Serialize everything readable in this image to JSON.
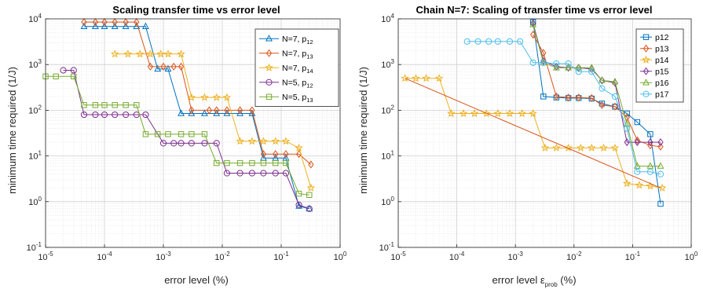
{
  "chart_data": [
    {
      "type": "line",
      "title": "Scaling transfer time vs error level",
      "xlabel": "error level (%)",
      "ylabel": "minimum time required (1/J)",
      "xscale": "log",
      "yscale": "log",
      "xlim": [
        1e-05,
        1
      ],
      "ylim": [
        0.1,
        10000
      ],
      "x_ticks": [
        {
          "b": "10",
          "e": "-5"
        },
        {
          "b": "10",
          "e": "-4"
        },
        {
          "b": "10",
          "e": "-3"
        },
        {
          "b": "10",
          "e": "-2"
        },
        {
          "b": "10",
          "e": "-1"
        },
        {
          "b": "10",
          "e": "0"
        }
      ],
      "y_ticks": [
        {
          "b": "10",
          "e": "-1"
        },
        {
          "b": "10",
          "e": "0"
        },
        {
          "b": "10",
          "e": "1"
        },
        {
          "b": "10",
          "e": "2"
        },
        {
          "b": "10",
          "e": "3"
        },
        {
          "b": "10",
          "e": "4"
        }
      ],
      "grid": true,
      "legend_position": "top-right",
      "series": [
        {
          "name": "N=7, p",
          "sub": "12",
          "color": "#0072BD",
          "marker": "triangle",
          "x": [
            4.5e-05,
            7e-05,
            0.0001,
            0.00015,
            0.00023,
            0.00035,
            0.0005,
            0.0008,
            0.0012,
            0.002,
            0.003,
            0.005,
            0.008,
            0.012,
            0.02,
            0.032,
            0.05,
            0.08,
            0.12,
            0.2,
            0.3
          ],
          "y": [
            6800,
            6800,
            6800,
            6800,
            6800,
            6800,
            6800,
            800,
            800,
            85,
            85,
            85,
            85,
            85,
            85,
            85,
            9,
            9,
            9,
            0.8,
            0.7
          ]
        },
        {
          "name": "N=7, p",
          "sub": "13",
          "color": "#D95319",
          "marker": "diamond",
          "x": [
            4.5e-05,
            7e-05,
            0.0001,
            0.00015,
            0.00023,
            0.00035,
            0.0006,
            0.001,
            0.0015,
            0.002,
            0.003,
            0.006,
            0.008,
            0.012,
            0.02,
            0.032,
            0.05,
            0.08,
            0.12,
            0.2,
            0.32
          ],
          "y": [
            8500,
            8500,
            8500,
            8500,
            8500,
            8500,
            900,
            900,
            900,
            900,
            100,
            100,
            100,
            100,
            100,
            100,
            11,
            11,
            11,
            11,
            6.5
          ]
        },
        {
          "name": "N=7, p",
          "sub": "14",
          "color": "#EDB120",
          "marker": "star",
          "x": [
            0.00015,
            0.00025,
            0.0004,
            0.0006,
            0.0009,
            0.0012,
            0.002,
            0.003,
            0.005,
            0.008,
            0.012,
            0.02,
            0.032,
            0.05,
            0.08,
            0.12,
            0.2,
            0.32
          ],
          "y": [
            1700,
            1700,
            1700,
            1700,
            1700,
            1700,
            1700,
            190,
            190,
            190,
            190,
            21,
            21,
            21,
            21,
            21,
            15,
            2
          ]
        },
        {
          "name": "N=5, p",
          "sub": "12",
          "color": "#7E2F8E",
          "marker": "circle",
          "x": [
            2e-05,
            3e-05,
            4.5e-05,
            7e-05,
            0.0001,
            0.00015,
            0.00023,
            0.00035,
            0.0005,
            0.001,
            0.0015,
            0.002,
            0.003,
            0.005,
            0.008,
            0.012,
            0.02,
            0.032,
            0.05,
            0.08,
            0.12,
            0.2,
            0.3
          ],
          "y": [
            750,
            750,
            80,
            80,
            80,
            80,
            80,
            80,
            80,
            19,
            19,
            19,
            19,
            19,
            19,
            4.2,
            4.2,
            4.2,
            4.2,
            4.2,
            4.2,
            0.85,
            0.7
          ]
        },
        {
          "name": "N=5, p",
          "sub": "13",
          "color": "#77AC30",
          "marker": "square",
          "x": [
            1e-05,
            1.5e-05,
            3e-05,
            4.5e-05,
            7e-05,
            0.0001,
            0.00015,
            0.00023,
            0.00035,
            0.0005,
            0.0008,
            0.0012,
            0.002,
            0.003,
            0.005,
            0.008,
            0.012,
            0.02,
            0.032,
            0.05,
            0.08,
            0.12,
            0.2,
            0.3
          ],
          "y": [
            550,
            550,
            550,
            130,
            130,
            130,
            130,
            130,
            130,
            30,
            30,
            30,
            30,
            30,
            30,
            7,
            7,
            7,
            7,
            7,
            7,
            7,
            1.5,
            1.4
          ]
        }
      ]
    },
    {
      "type": "line",
      "title": "Chain N=7: Scaling of transfer time vs error level",
      "xlabel": "error level ε",
      "xlabel_sub": "prob",
      "xlabel_suffix": " (%)",
      "ylabel": "minimum time required (1/J)",
      "xscale": "log",
      "yscale": "log",
      "xlim": [
        1e-05,
        1
      ],
      "ylim": [
        0.1,
        10000
      ],
      "x_ticks": [
        {
          "b": "10",
          "e": "-5"
        },
        {
          "b": "10",
          "e": "-4"
        },
        {
          "b": "10",
          "e": "-3"
        },
        {
          "b": "10",
          "e": "-2"
        },
        {
          "b": "10",
          "e": "-1"
        },
        {
          "b": "10",
          "e": "0"
        }
      ],
      "y_ticks": [
        {
          "b": "10",
          "e": "-1"
        },
        {
          "b": "10",
          "e": "0"
        },
        {
          "b": "10",
          "e": "1"
        },
        {
          "b": "10",
          "e": "2"
        },
        {
          "b": "10",
          "e": "3"
        },
        {
          "b": "10",
          "e": "4"
        }
      ],
      "grid": true,
      "legend_position": "top-right",
      "series": [
        {
          "name": "p12",
          "color": "#0072BD",
          "marker": "square",
          "x": [
            0.002,
            0.003,
            0.005,
            0.008,
            0.012,
            0.02,
            0.03,
            0.05,
            0.08,
            0.12,
            0.2,
            0.3
          ],
          "y": [
            8500,
            200,
            190,
            185,
            185,
            180,
            140,
            120,
            85,
            55,
            30,
            0.9
          ]
        },
        {
          "name": "p13",
          "color": "#D95319",
          "marker": "diamond",
          "x": [
            0.002,
            0.003,
            0.005,
            0.008,
            0.012,
            0.02,
            0.03,
            0.05,
            0.08,
            0.12,
            0.2,
            0.3
          ],
          "y": [
            4500,
            1800,
            200,
            190,
            190,
            185,
            130,
            120,
            70,
            22,
            17,
            16
          ]
        },
        {
          "name": "p14",
          "color": "#EDB120",
          "marker": "star",
          "x": [
            1.3e-05,
            2e-05,
            3e-05,
            5e-05,
            8e-05,
            0.00013,
            0.0002,
            0.00032,
            0.0005,
            0.0008,
            0.0013,
            0.002,
            0.0032,
            0.005,
            0.008,
            0.013,
            0.02,
            0.032,
            0.05,
            0.08,
            0.13,
            0.2,
            0.32
          ],
          "y": [
            500,
            500,
            500,
            500,
            85,
            85,
            85,
            85,
            85,
            85,
            85,
            85,
            15,
            15,
            15,
            15,
            15,
            15,
            15,
            2.5,
            2.3,
            2.2,
            2
          ]
        },
        {
          "name": "p15",
          "color": "#7E2F8E",
          "marker": "diamond",
          "x": [
            0.002,
            0.003,
            0.005,
            0.008,
            0.012,
            0.02,
            0.03,
            0.05,
            0.08,
            0.12,
            0.2,
            0.3
          ],
          "y": [
            8000,
            1200,
            900,
            850,
            850,
            800,
            450,
            400,
            20,
            20,
            20,
            20
          ]
        },
        {
          "name": "p16",
          "color": "#77AC30",
          "marker": "triangle",
          "x": [
            0.002,
            0.003,
            0.005,
            0.008,
            0.012,
            0.02,
            0.03,
            0.05,
            0.08,
            0.12,
            0.2,
            0.3
          ],
          "y": [
            7500,
            1100,
            850,
            850,
            850,
            850,
            450,
            420,
            50,
            6,
            6,
            6
          ]
        },
        {
          "name": "p17",
          "color": "#4DBEEE",
          "marker": "circle",
          "x": [
            0.00015,
            0.00023,
            0.00035,
            0.0005,
            0.0008,
            0.0012,
            0.002,
            0.003,
            0.005,
            0.008,
            0.012,
            0.02,
            0.03,
            0.05,
            0.08,
            0.12,
            0.2,
            0.3
          ],
          "y": [
            3200,
            3200,
            3200,
            3200,
            3200,
            3200,
            1100,
            1100,
            1050,
            1050,
            700,
            700,
            300,
            200,
            40,
            4.5,
            4.5,
            4
          ]
        },
        {
          "name": "",
          "color": "#D95319",
          "marker": "none",
          "x": [
            1.3e-05,
            0.3
          ],
          "y": [
            500,
            2
          ]
        }
      ]
    }
  ]
}
